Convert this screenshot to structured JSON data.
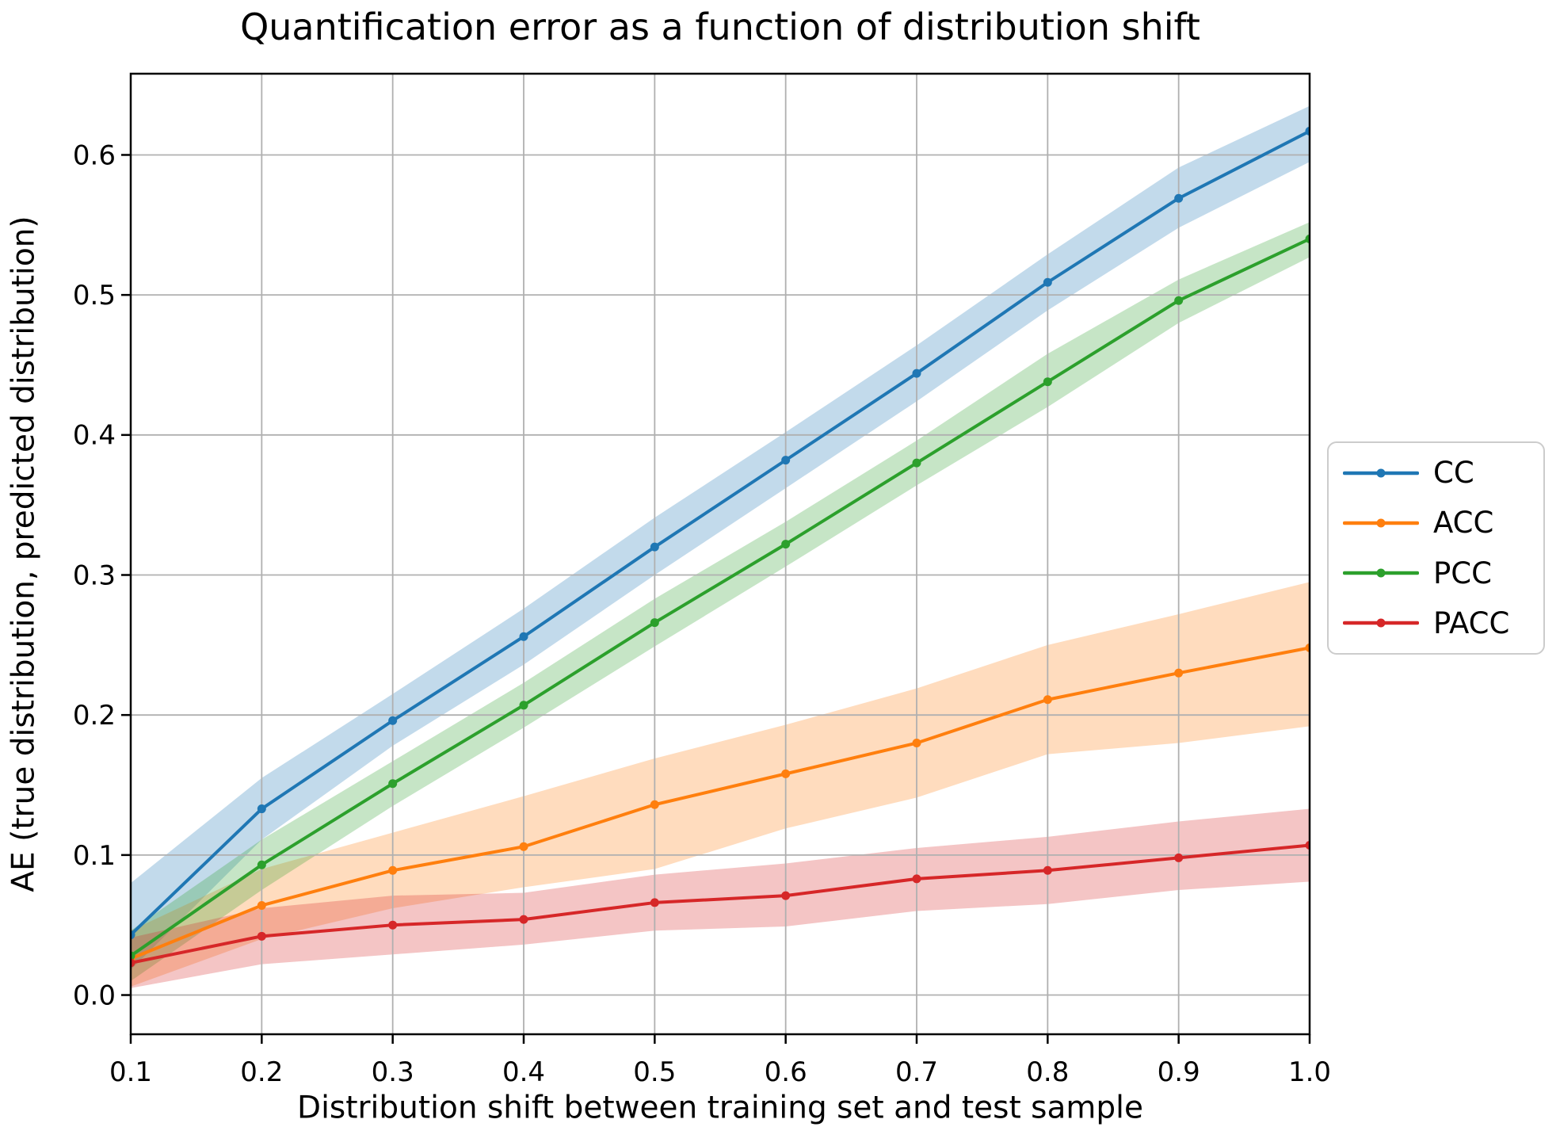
{
  "figure": {
    "background": "#ffffff",
    "title": "Quantification error as a function of distribution shift"
  },
  "chart_data": {
    "type": "line",
    "title": "Quantification error as a function of distribution shift",
    "xlabel": "Distribution shift between training set and test sample",
    "ylabel": "AE (true distribution, predicted distribution)",
    "xlim": [
      0.1,
      1.0
    ],
    "ylim": [
      -0.028,
      0.658
    ],
    "grid": true,
    "grid_color": "#b0b0b0",
    "spine_color": "#000000",
    "band_opacity": 0.27,
    "legend_position": "right-outside",
    "x": [
      0.1,
      0.2,
      0.3,
      0.4,
      0.5,
      0.6,
      0.7,
      0.8,
      0.9,
      1.0
    ],
    "x_tick_labels": [
      "0.1",
      "0.2",
      "0.3",
      "0.4",
      "0.5",
      "0.6",
      "0.7",
      "0.8",
      "0.9",
      "1.0"
    ],
    "y_tick_values": [
      0.0,
      0.1,
      0.2,
      0.3,
      0.4,
      0.5,
      0.6
    ],
    "y_tick_labels": [
      "0.0",
      "0.1",
      "0.2",
      "0.3",
      "0.4",
      "0.5",
      "0.6"
    ],
    "marker": "circle",
    "series": [
      {
        "name": "CC",
        "color": "#1f77b4",
        "values": [
          0.043,
          0.133,
          0.196,
          0.256,
          0.32,
          0.382,
          0.444,
          0.509,
          0.569,
          0.617
        ],
        "band_lower": [
          0.018,
          0.111,
          0.178,
          0.236,
          0.3,
          0.362,
          0.424,
          0.489,
          0.548,
          0.595
        ],
        "band_upper": [
          0.08,
          0.155,
          0.215,
          0.276,
          0.341,
          0.402,
          0.464,
          0.529,
          0.591,
          0.635
        ]
      },
      {
        "name": "ACC",
        "color": "#ff7f0e",
        "values": [
          0.026,
          0.064,
          0.089,
          0.106,
          0.136,
          0.158,
          0.18,
          0.211,
          0.23,
          0.248
        ],
        "band_lower": [
          0.006,
          0.04,
          0.062,
          0.077,
          0.09,
          0.119,
          0.141,
          0.172,
          0.18,
          0.192
        ],
        "band_upper": [
          0.046,
          0.09,
          0.116,
          0.142,
          0.169,
          0.193,
          0.219,
          0.25,
          0.272,
          0.295
        ]
      },
      {
        "name": "PCC",
        "color": "#2ca02c",
        "values": [
          0.028,
          0.093,
          0.151,
          0.207,
          0.266,
          0.322,
          0.38,
          0.438,
          0.496,
          0.54
        ],
        "band_lower": [
          0.01,
          0.075,
          0.135,
          0.191,
          0.249,
          0.306,
          0.364,
          0.42,
          0.48,
          0.527
        ],
        "band_upper": [
          0.046,
          0.111,
          0.167,
          0.223,
          0.283,
          0.338,
          0.396,
          0.458,
          0.511,
          0.552
        ]
      },
      {
        "name": "PACC",
        "color": "#d62728",
        "values": [
          0.023,
          0.042,
          0.05,
          0.054,
          0.066,
          0.071,
          0.083,
          0.089,
          0.098,
          0.107
        ],
        "band_lower": [
          0.005,
          0.022,
          0.029,
          0.036,
          0.046,
          0.049,
          0.06,
          0.065,
          0.075,
          0.081
        ],
        "band_upper": [
          0.041,
          0.062,
          0.071,
          0.073,
          0.086,
          0.094,
          0.105,
          0.113,
          0.124,
          0.133
        ]
      }
    ]
  }
}
